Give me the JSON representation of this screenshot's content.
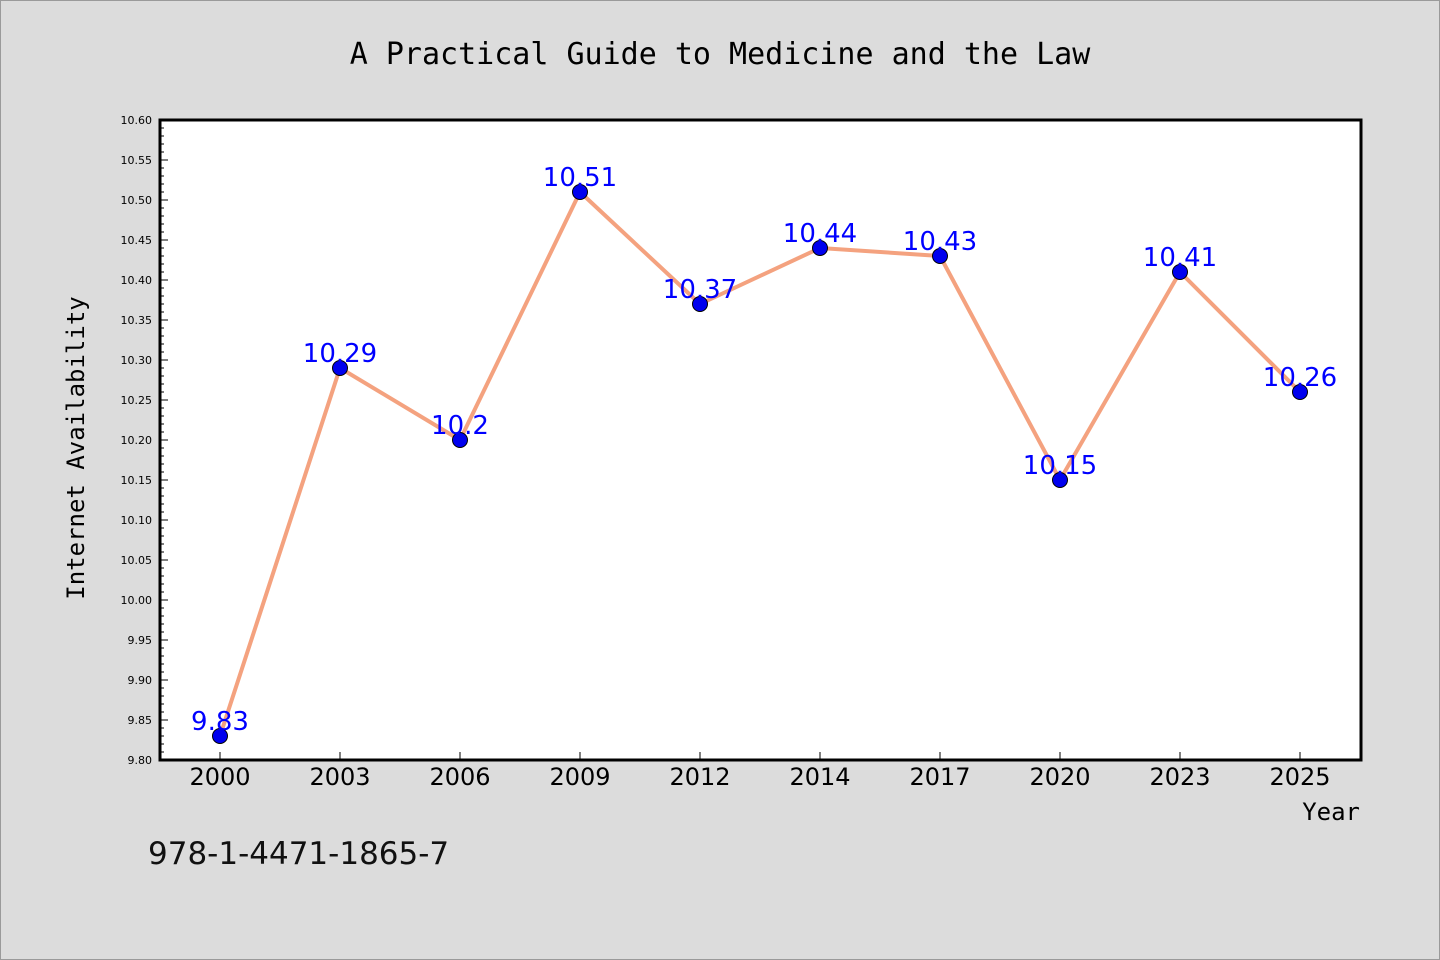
{
  "chart_data": {
    "type": "line",
    "title": "A Practical Guide to Medicine and the Law",
    "xlabel": "Year",
    "ylabel": "Internet Availability",
    "categories": [
      "2000",
      "2003",
      "2006",
      "2009",
      "2012",
      "2014",
      "2017",
      "2020",
      "2023",
      "2025"
    ],
    "values": [
      9.83,
      10.29,
      10.2,
      10.51,
      10.37,
      10.44,
      10.43,
      10.15,
      10.41,
      10.26
    ],
    "data_labels": [
      "9.83",
      "10.29",
      "10.2",
      "10.51",
      "10.37",
      "10.44",
      "10.43",
      "10.15",
      "10.41",
      "10.26"
    ],
    "ylim": [
      9.8,
      10.6
    ],
    "yticks": [
      "9.80",
      "9.85",
      "9.90",
      "9.95",
      "10.00",
      "10.05",
      "10.10",
      "10.15",
      "10.20",
      "10.25",
      "10.30",
      "10.35",
      "10.40",
      "10.45",
      "10.50",
      "10.55",
      "10.60"
    ],
    "grid": false,
    "legend": "none",
    "colors": {
      "line": "#f4a27f",
      "marker": "#0000ee",
      "label": "#0000ff"
    }
  },
  "footer_text": "978-1-4471-1865-7"
}
